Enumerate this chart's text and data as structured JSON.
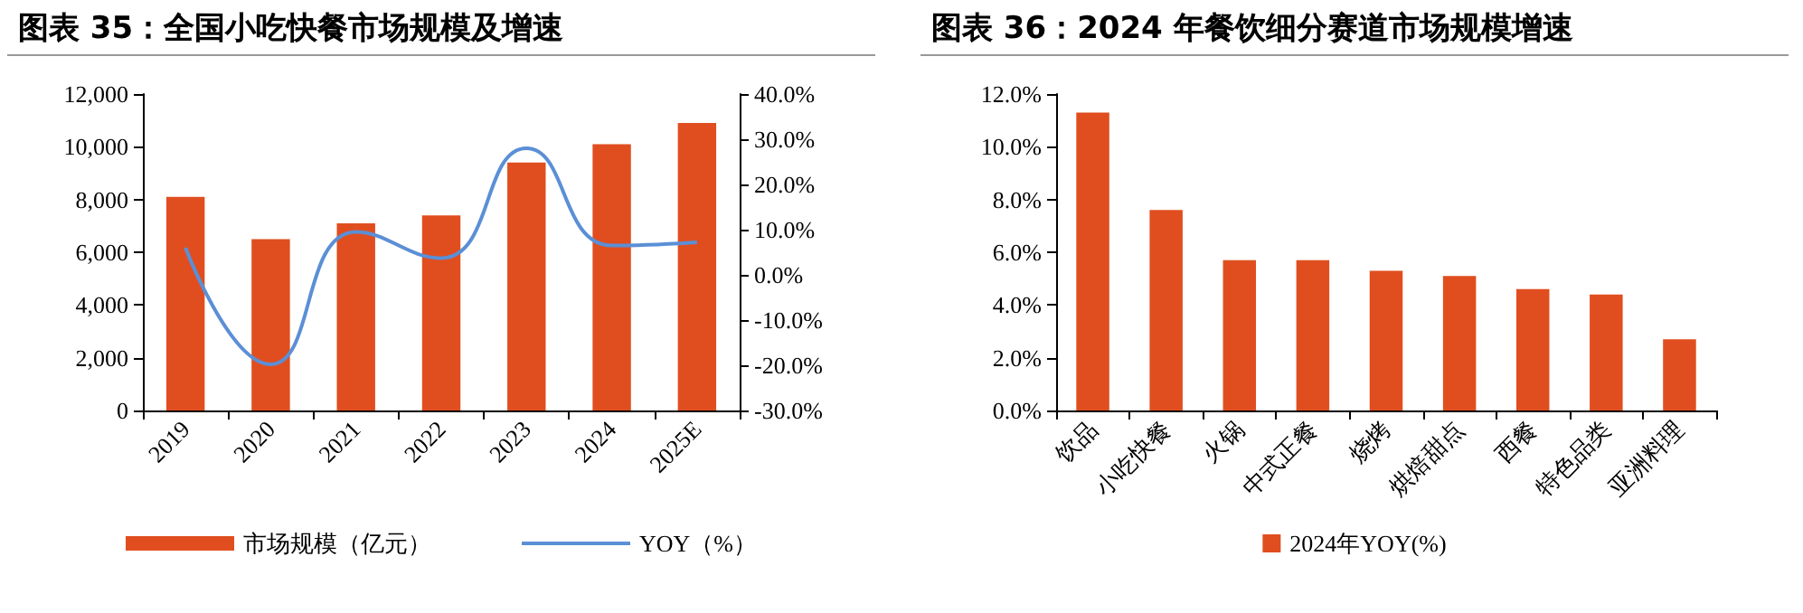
{
  "chart_data": [
    {
      "type": "bar",
      "title": "图表 35：全国小吃快餐市场规模及增速",
      "categories": [
        "2019",
        "2020",
        "2021",
        "2022",
        "2023",
        "2024",
        "2025E"
      ],
      "series": [
        {
          "name": "市场规模（亿元）",
          "color": "#e04e1f",
          "values": [
            8100,
            6500,
            7100,
            7400,
            9400,
            10100,
            10900
          ]
        },
        {
          "name": "YOY（%）",
          "type": "line",
          "axis": "y2",
          "color": "#5b8fd6",
          "values": [
            6.0,
            -19.8,
            9.5,
            3.7,
            28.0,
            6.5,
            7.2
          ]
        }
      ],
      "ylim": [
        0,
        12000
      ],
      "yticks": [
        {
          "value": 0,
          "label": "0"
        },
        {
          "value": 2000,
          "label": "2,000"
        },
        {
          "value": 4000,
          "label": "4,000"
        },
        {
          "value": 6000,
          "label": "6,000"
        },
        {
          "value": 8000,
          "label": "8,000"
        },
        {
          "value": 10000,
          "label": "10,000"
        },
        {
          "value": 12000,
          "label": "12,000"
        }
      ],
      "y2lim": [
        -30,
        40
      ],
      "y2ticks": [
        {
          "value": -30,
          "label": "-30.0%"
        },
        {
          "value": -20,
          "label": "-20.0%"
        },
        {
          "value": -10,
          "label": "-10.0%"
        },
        {
          "value": 0,
          "label": "0.0%"
        },
        {
          "value": 10,
          "label": "10.0%"
        },
        {
          "value": 20,
          "label": "20.0%"
        },
        {
          "value": 30,
          "label": "30.0%"
        },
        {
          "value": 40,
          "label": "40.0%"
        }
      ],
      "grid": false,
      "legend": "bottom",
      "marker": "none"
    },
    {
      "type": "bar",
      "title": "图表 36：2024 年餐饮细分赛道市场规模增速",
      "categories": [
        "饮品",
        "小吃快餐",
        "火锅",
        "中式正餐",
        "烧烤",
        "烘焙甜点",
        "西餐",
        "特色品类",
        "亚洲料理"
      ],
      "series": [
        {
          "name": "2024年YOY(%)",
          "color": "#e04e1f",
          "values": [
            11.3,
            7.6,
            5.7,
            5.7,
            5.3,
            5.1,
            4.6,
            4.4,
            2.7
          ]
        }
      ],
      "ylim": [
        0,
        12
      ],
      "yticks": [
        {
          "value": 0,
          "label": "0.0%"
        },
        {
          "value": 2,
          "label": "2.0%"
        },
        {
          "value": 4,
          "label": "4.0%"
        },
        {
          "value": 6,
          "label": "6.0%"
        },
        {
          "value": 8,
          "label": "8.0%"
        },
        {
          "value": 10,
          "label": "10.0%"
        },
        {
          "value": 12,
          "label": "12.0%"
        }
      ],
      "grid": false,
      "legend": "bottom"
    }
  ]
}
